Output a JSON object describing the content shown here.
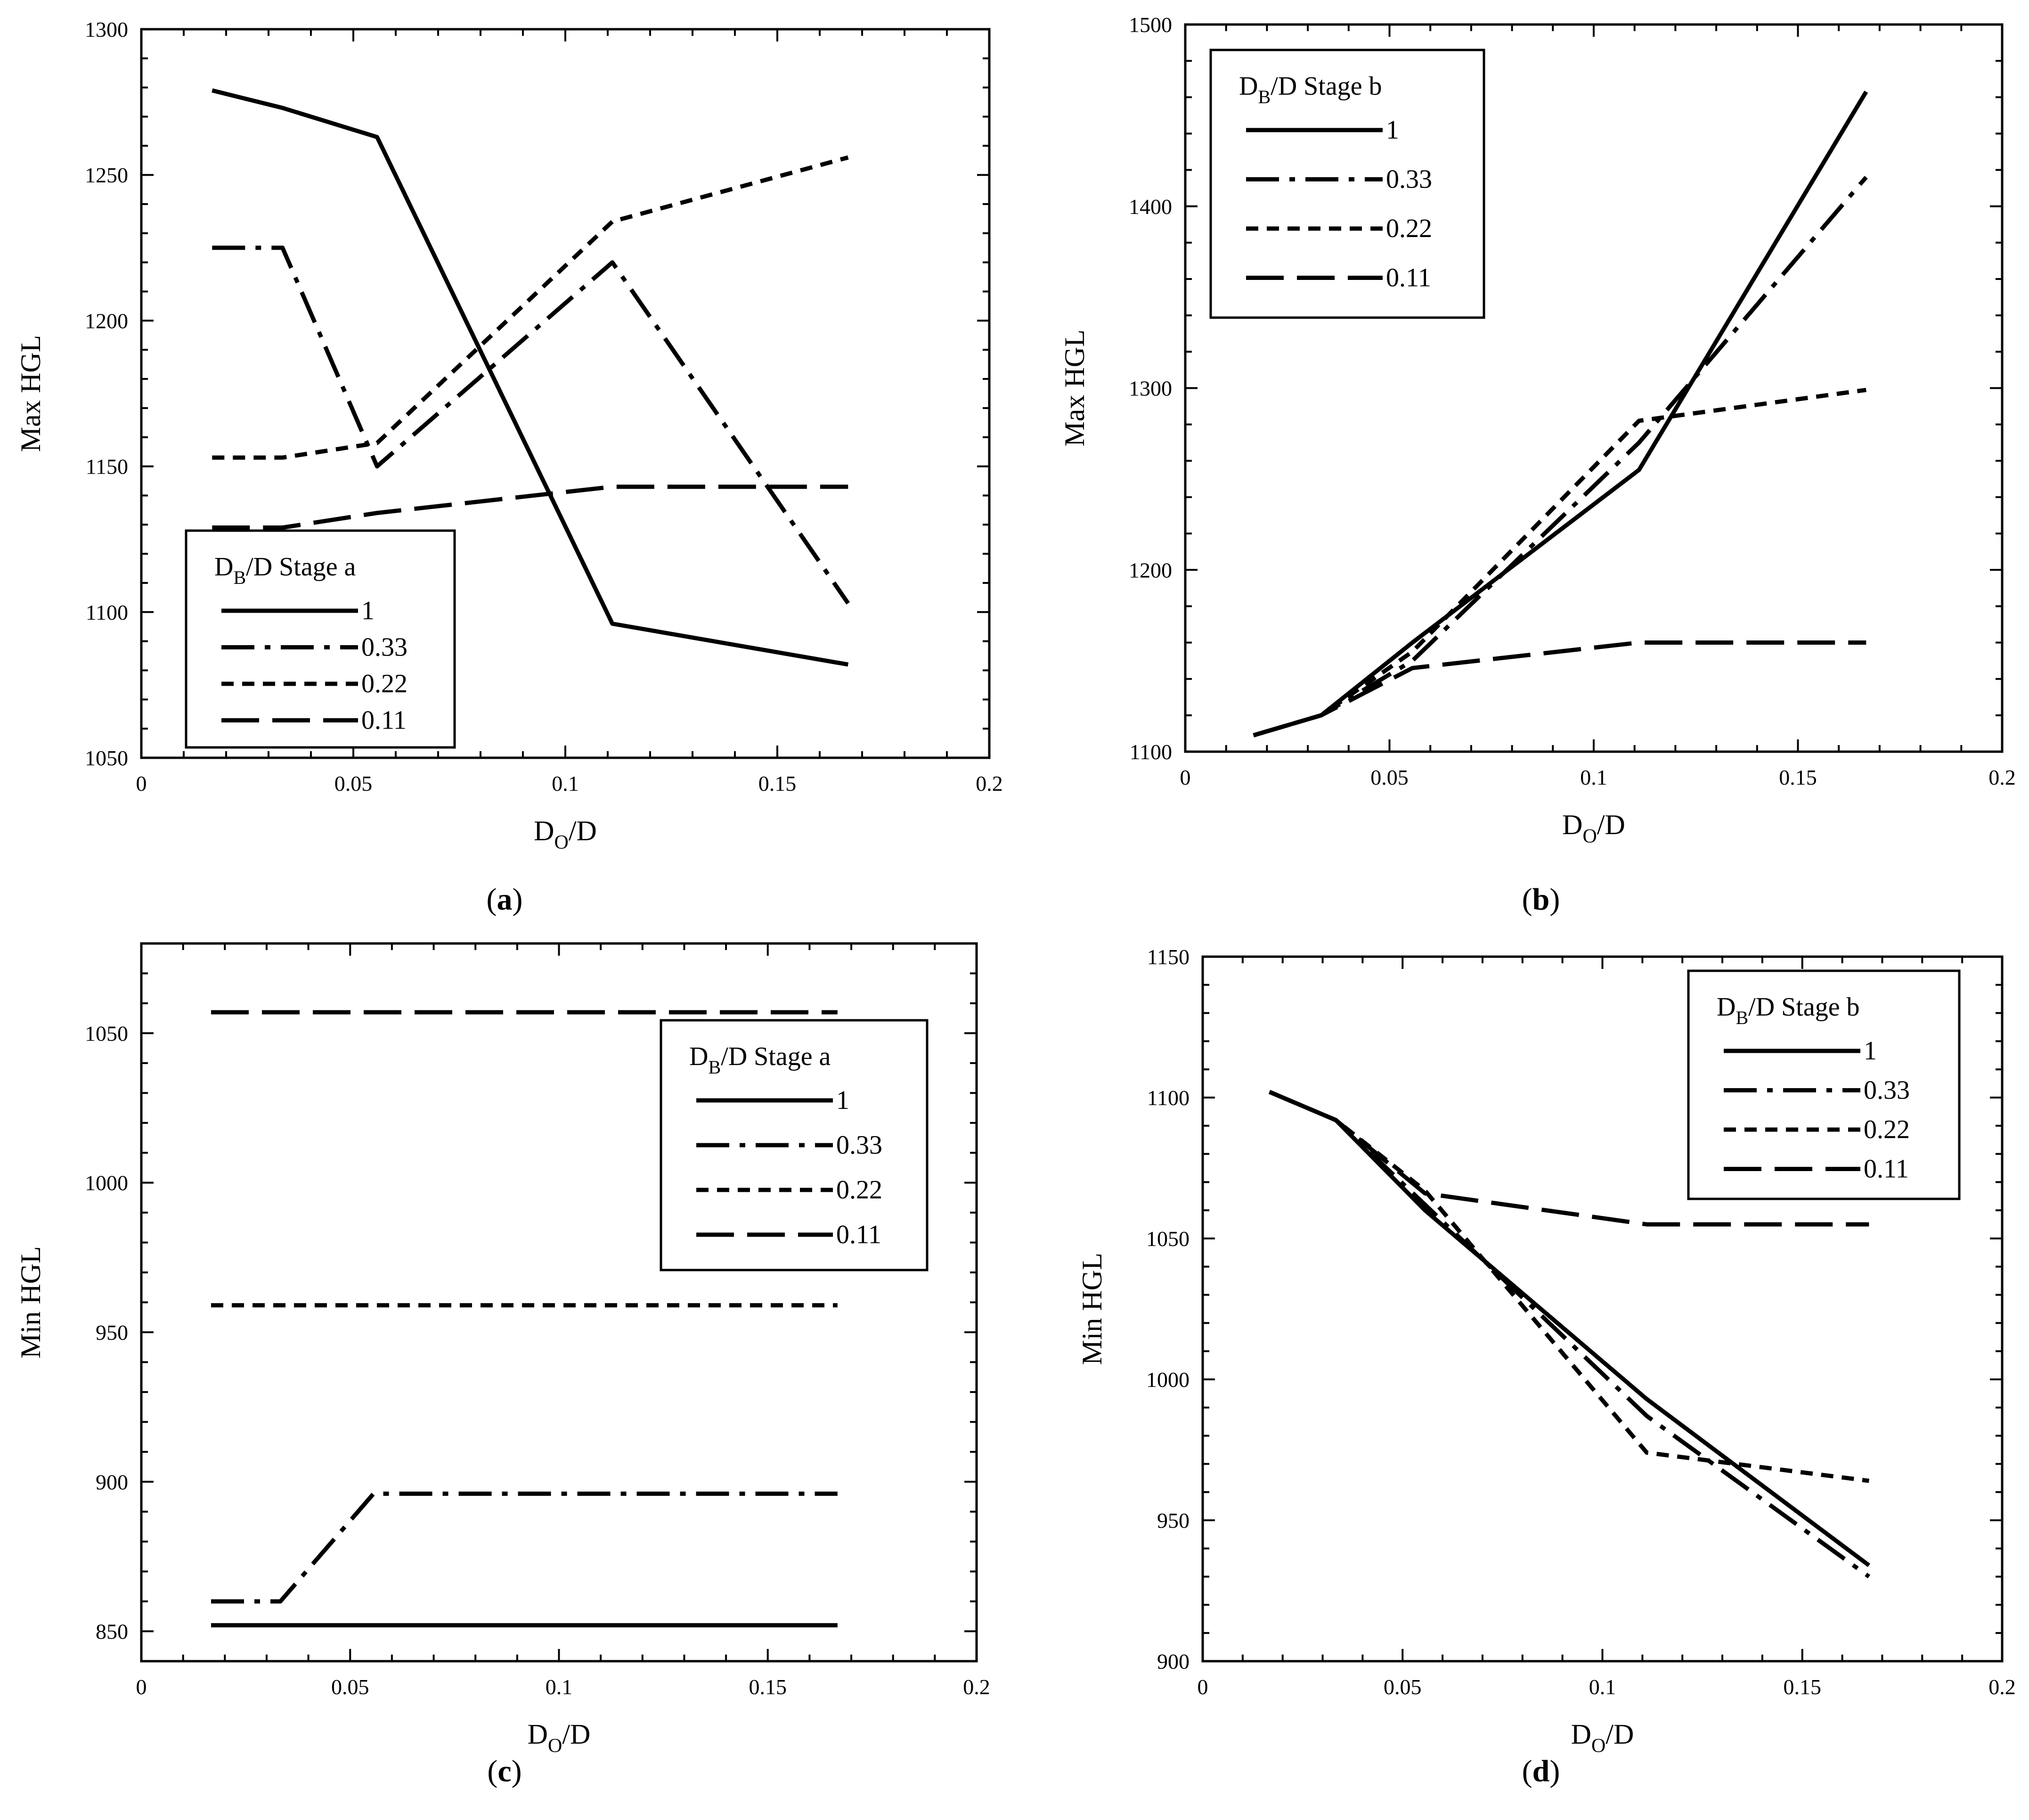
{
  "figure": {
    "panels": [
      {
        "id": "a",
        "label_prefix": "(",
        "label_letter": "a",
        "label_suffix": ")"
      },
      {
        "id": "b",
        "label_prefix": "(",
        "label_letter": "b",
        "label_suffix": ")"
      },
      {
        "id": "c",
        "label_prefix": "(",
        "label_letter": "c",
        "label_suffix": ")"
      },
      {
        "id": "d",
        "label_prefix": "(",
        "label_letter": "d",
        "label_suffix": ")"
      }
    ]
  },
  "chart_data": [
    {
      "id": "a",
      "type": "line",
      "xlabel_main": "D",
      "xlabel_sub": "O",
      "xlabel_rest": "/D",
      "ylabel": "Max HGL",
      "xlim": [
        0,
        0.2
      ],
      "ylim": [
        1050,
        1300
      ],
      "xticks": [
        "0",
        "0.05",
        "0.1",
        "0.15",
        "0.2"
      ],
      "xtick_values": [
        0,
        0.05,
        0.1,
        0.15,
        0.2
      ],
      "yticks": [
        "1050",
        "1100",
        "1150",
        "1200",
        "1250",
        "1300"
      ],
      "ytick_values": [
        1050,
        1100,
        1150,
        1200,
        1250,
        1300
      ],
      "legend": {
        "title_main": "D",
        "title_sub": "B",
        "title_rest": "/D Stage a",
        "placement": "lower-left"
      },
      "x": [
        0.0167,
        0.0333,
        0.0556,
        0.1111,
        0.1667
      ],
      "series": [
        {
          "name": "1",
          "style": "solid",
          "values": [
            1279,
            1273,
            1263,
            1096,
            1082
          ]
        },
        {
          "name": "0.33",
          "style": "dashdot",
          "values": [
            1225,
            1225,
            1150,
            1220,
            1103
          ]
        },
        {
          "name": "0.22",
          "style": "dash",
          "values": [
            1153,
            1153,
            1158,
            1234,
            1256
          ]
        },
        {
          "name": "0.11",
          "style": "longdash",
          "values": [
            1129,
            1129,
            1134,
            1143,
            1143
          ]
        }
      ]
    },
    {
      "id": "b",
      "type": "line",
      "xlabel_main": "D",
      "xlabel_sub": "O",
      "xlabel_rest": "/D",
      "ylabel": "Max HGL",
      "xlim": [
        0,
        0.2
      ],
      "ylim": [
        1100,
        1500
      ],
      "xticks": [
        "0",
        "0.05",
        "0.1",
        "0.15",
        "0.2"
      ],
      "xtick_values": [
        0,
        0.05,
        0.1,
        0.15,
        0.2
      ],
      "yticks": [
        "1100",
        "1200",
        "1300",
        "1400",
        "1500"
      ],
      "ytick_values": [
        1100,
        1200,
        1300,
        1400,
        1500
      ],
      "legend": {
        "title_main": "D",
        "title_sub": "B",
        "title_rest": "/D Stage b",
        "placement": "top-left"
      },
      "x": [
        0.0167,
        0.0333,
        0.0556,
        0.1111,
        0.1667
      ],
      "series": [
        {
          "name": "1",
          "style": "solid",
          "values": [
            1109,
            1120,
            1160,
            1255,
            1463
          ]
        },
        {
          "name": "0.33",
          "style": "dashdot",
          "values": [
            1109,
            1120,
            1150,
            1270,
            1416
          ]
        },
        {
          "name": "0.22",
          "style": "dash",
          "values": [
            1109,
            1120,
            1155,
            1282,
            1299
          ]
        },
        {
          "name": "0.11",
          "style": "longdash",
          "values": [
            1109,
            1120,
            1146,
            1160,
            1160
          ]
        }
      ]
    },
    {
      "id": "c",
      "type": "line",
      "xlabel_main": "D",
      "xlabel_sub": "O",
      "xlabel_rest": "/D",
      "ylabel": "Min HGL",
      "xlim": [
        0,
        0.2
      ],
      "ylim": [
        840,
        1080
      ],
      "xticks": [
        "0",
        "0.05",
        "0.1",
        "0.15",
        "0.2"
      ],
      "xtick_values": [
        0,
        0.05,
        0.1,
        0.15,
        0.2
      ],
      "yticks": [
        "850",
        "900",
        "950",
        "1000",
        "1050"
      ],
      "ytick_values": [
        850,
        900,
        950,
        1000,
        1050
      ],
      "legend": {
        "title_main": "D",
        "title_sub": "B",
        "title_rest": "/D Stage a",
        "placement": "top-right"
      },
      "x": [
        0.0167,
        0.0333,
        0.0556,
        0.1111,
        0.1667
      ],
      "series": [
        {
          "name": "1",
          "style": "solid",
          "values": [
            852,
            852,
            852,
            852,
            852
          ]
        },
        {
          "name": "0.33",
          "style": "dashdot",
          "values": [
            860,
            860,
            896,
            896,
            896
          ]
        },
        {
          "name": "0.22",
          "style": "dash",
          "values": [
            959,
            959,
            959,
            959,
            959
          ]
        },
        {
          "name": "0.11",
          "style": "longdash",
          "values": [
            1057,
            1057,
            1057,
            1057,
            1057
          ]
        }
      ]
    },
    {
      "id": "d",
      "type": "line",
      "xlabel_main": "D",
      "xlabel_sub": "O",
      "xlabel_rest": "/D",
      "ylabel": "Min HGL",
      "xlim": [
        0,
        0.2
      ],
      "ylim": [
        900,
        1150
      ],
      "xticks": [
        "0",
        "0.05",
        "0.1",
        "0.15",
        "0.2"
      ],
      "xtick_values": [
        0,
        0.05,
        0.1,
        0.15,
        0.2
      ],
      "yticks": [
        "900",
        "950",
        "1000",
        "1050",
        "1100",
        "1150"
      ],
      "ytick_values": [
        900,
        950,
        1000,
        1050,
        1100,
        1150
      ],
      "legend": {
        "title_main": "D",
        "title_sub": "B",
        "title_rest": "/D Stage b",
        "placement": "top-right"
      },
      "x": [
        0.0167,
        0.0333,
        0.0556,
        0.1111,
        0.1667
      ],
      "series": [
        {
          "name": "1",
          "style": "solid",
          "values": [
            1102,
            1092,
            1060,
            993,
            934
          ]
        },
        {
          "name": "0.33",
          "style": "dashdot",
          "values": [
            1102,
            1092,
            1062,
            987,
            930
          ]
        },
        {
          "name": "0.22",
          "style": "dash",
          "values": [
            1102,
            1092,
            1067,
            974,
            964
          ]
        },
        {
          "name": "0.11",
          "style": "longdash",
          "values": [
            1102,
            1092,
            1066,
            1055,
            1055
          ]
        }
      ]
    }
  ]
}
